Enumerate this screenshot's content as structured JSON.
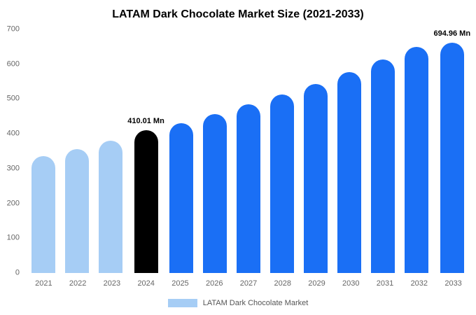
{
  "page": {
    "background": "#ffffff"
  },
  "colors": {
    "historical": "#a6cdf5",
    "highlight": "#000000",
    "forecast": "#1a6ff5",
    "axis_text": "#666666",
    "title_text": "#000000"
  },
  "legend": {
    "label": "LATAM Dark Chocolate Market",
    "swatch_color_key": "historical"
  },
  "chart_data": {
    "type": "bar",
    "title": "LATAM Dark Chocolate Market Size (2021-2033)",
    "categories": [
      "2021",
      "2022",
      "2023",
      "2024",
      "2025",
      "2026",
      "2027",
      "2028",
      "2029",
      "2030",
      "2031",
      "2032",
      "2033"
    ],
    "values": [
      336,
      356,
      380,
      410.01,
      430,
      456,
      484,
      513,
      544,
      578,
      613,
      650,
      694.96
    ],
    "color_keys": [
      "historical",
      "historical",
      "historical",
      "highlight",
      "forecast",
      "forecast",
      "forecast",
      "forecast",
      "forecast",
      "forecast",
      "forecast",
      "forecast",
      "forecast"
    ],
    "ylim": [
      0,
      700
    ],
    "yticks": [
      0,
      100,
      200,
      300,
      400,
      500,
      600,
      700
    ],
    "grid": false,
    "legend_position": "bottom",
    "xlabel": "",
    "ylabel": "",
    "annotations": [
      {
        "index": 3,
        "text": "410.01 Mn"
      },
      {
        "index": 12,
        "text": "694.96 Mn"
      }
    ]
  }
}
